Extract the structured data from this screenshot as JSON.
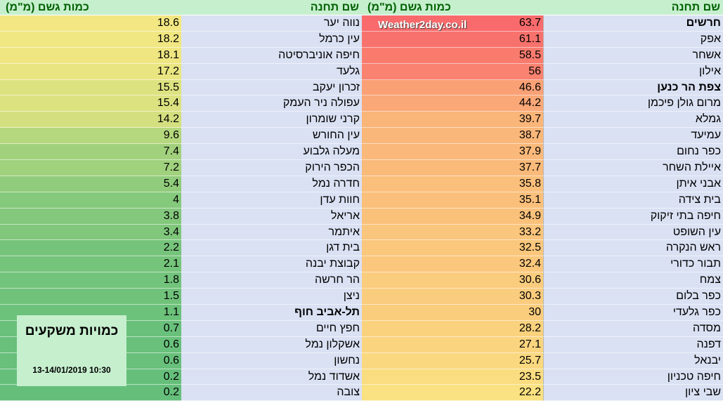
{
  "headers": {
    "amount": "כמות גשם (מ\"מ)",
    "station": "שם תחנה"
  },
  "brand": "Weather2day.co.il",
  "badge": {
    "title": "כמויות משקעים",
    "date": "13-14/01/2019 10:30"
  },
  "right_table": [
    {
      "station": "חרשים",
      "amount": "63.7",
      "bold": true
    },
    {
      "station": "אפק",
      "amount": "61.1"
    },
    {
      "station": "אשחר",
      "amount": "58.5"
    },
    {
      "station": "אילון",
      "amount": "56"
    },
    {
      "station": "צפת הר כנען",
      "amount": "46.6",
      "bold": true
    },
    {
      "station": "מרום גולן פיכמן",
      "amount": "44.2"
    },
    {
      "station": "גמלא",
      "amount": "39.7"
    },
    {
      "station": "עמיעד",
      "amount": "38.7"
    },
    {
      "station": "כפר נחום",
      "amount": "37.9"
    },
    {
      "station": "איילת השחר",
      "amount": "37.7"
    },
    {
      "station": "אבני איתן",
      "amount": "35.8"
    },
    {
      "station": "בית צידה",
      "amount": "35.1"
    },
    {
      "station": "חיפה בתי זיקוק",
      "amount": "34.9"
    },
    {
      "station": "עין השופט",
      "amount": "33.2"
    },
    {
      "station": "ראש הנקרה",
      "amount": "32.5"
    },
    {
      "station": "תבור כדורי",
      "amount": "32.4"
    },
    {
      "station": "צמח",
      "amount": "30.6"
    },
    {
      "station": "כפר בלום",
      "amount": "30.3"
    },
    {
      "station": "כפר גלעדי",
      "amount": "30"
    },
    {
      "station": "מסדה",
      "amount": "28.2"
    },
    {
      "station": "דפנה",
      "amount": "27.1"
    },
    {
      "station": "יבנאל",
      "amount": "25.7"
    },
    {
      "station": "חיפה טכניון",
      "amount": "23.5"
    },
    {
      "station": "שבי ציון",
      "amount": "22.2"
    }
  ],
  "left_table": [
    {
      "station": "נווה יער",
      "amount": "18.6"
    },
    {
      "station": "עין כרמל",
      "amount": "18.2"
    },
    {
      "station": "חיפה אוניברסיטה",
      "amount": "18.1"
    },
    {
      "station": "גלעד",
      "amount": "17.2"
    },
    {
      "station": "זכרון יעקב",
      "amount": "15.5"
    },
    {
      "station": "עפולה ניר העמק",
      "amount": "15.4"
    },
    {
      "station": "קרני שומרון",
      "amount": "14.2"
    },
    {
      "station": "עין החורש",
      "amount": "9.6"
    },
    {
      "station": "מעלה גלבוע",
      "amount": "7.4"
    },
    {
      "station": "הכפר הירוק",
      "amount": "7.2"
    },
    {
      "station": "חדרה נמל",
      "amount": "5.4"
    },
    {
      "station": "חוות עדן",
      "amount": "4"
    },
    {
      "station": "אריאל",
      "amount": "3.8"
    },
    {
      "station": "איתמר",
      "amount": "3.4"
    },
    {
      "station": "בית דגן",
      "amount": "2.2"
    },
    {
      "station": "קבוצת יבנה",
      "amount": "2.1"
    },
    {
      "station": "הר חרשה",
      "amount": "1.8"
    },
    {
      "station": "ניצן",
      "amount": "1.5"
    },
    {
      "station": "תל-אביב חוף",
      "amount": "1.1",
      "bold": true
    },
    {
      "station": "חפץ חיים",
      "amount": "0.7"
    },
    {
      "station": "אשקלון נמל",
      "amount": "0.6"
    },
    {
      "station": "נחשון",
      "amount": "0.6"
    },
    {
      "station": "אשדוד נמל",
      "amount": "0.2"
    },
    {
      "station": "צובה",
      "amount": "0.2"
    }
  ]
}
